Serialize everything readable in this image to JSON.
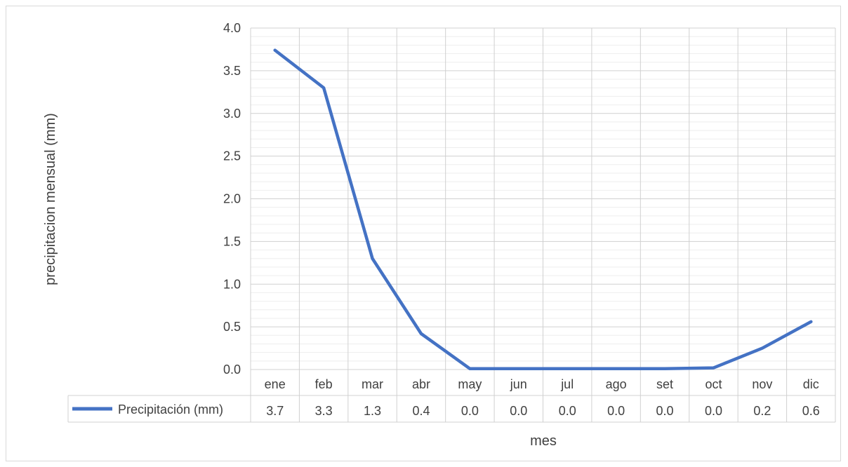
{
  "chart_data": {
    "type": "line",
    "categories": [
      "ene",
      "feb",
      "mar",
      "abr",
      "may",
      "jun",
      "jul",
      "ago",
      "set",
      "oct",
      "nov",
      "dic"
    ],
    "series": [
      {
        "name": "Precipitación (mm)",
        "values": [
          3.74,
          3.3,
          1.3,
          0.42,
          0.01,
          0.01,
          0.01,
          0.01,
          0.01,
          0.02,
          0.25,
          0.56
        ],
        "table_values": [
          "3.7",
          "3.3",
          "1.3",
          "0.4",
          "0.0",
          "0.0",
          "0.0",
          "0.0",
          "0.0",
          "0.0",
          "0.2",
          "0.6"
        ],
        "color": "#4472c4"
      }
    ],
    "yticks": [
      "0.0",
      "0.5",
      "1.0",
      "1.5",
      "2.0",
      "2.5",
      "3.0",
      "3.5",
      "4.0"
    ],
    "ylim": [
      0,
      4
    ],
    "xlabel": "mes",
    "ylabel": "precipitacion mensual (mm)",
    "grid": true,
    "data_table": true
  }
}
